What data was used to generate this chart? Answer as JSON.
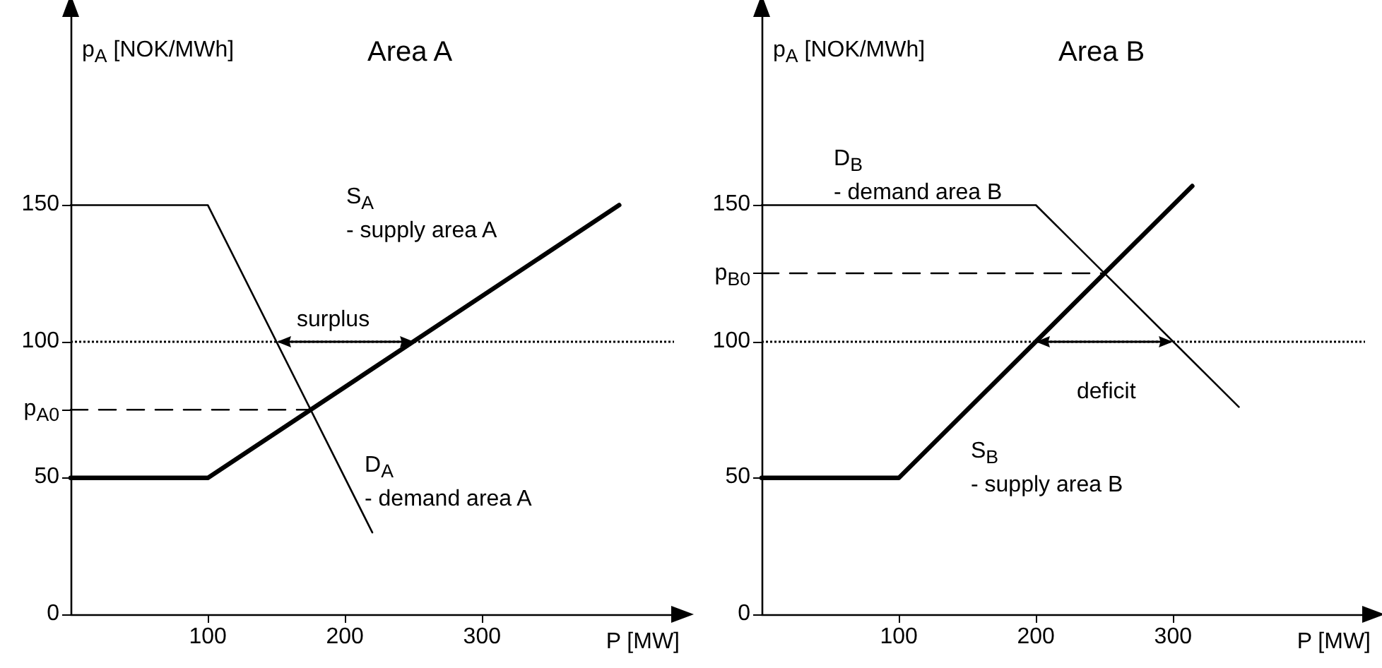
{
  "chart_data": [
    {
      "type": "line",
      "title": "Area A",
      "xlabel": "P [MW]",
      "ylabel": "p$_{A}$ [NOK/MWh]",
      "xlim": [
        0,
        440
      ],
      "ylim": [
        0,
        220
      ],
      "xticks": [
        100,
        200,
        300
      ],
      "yticks": [
        0,
        50,
        {
          "value": 75,
          "label": "p$_{A0}$"
        },
        100,
        150
      ],
      "marker": "none",
      "series": [
        {
          "name": "S$_{A}$\n- supply area A",
          "color": "#000000",
          "x": [
            0,
            100,
            400
          ],
          "values": [
            50,
            50,
            150
          ]
        },
        {
          "name": "D$_{A}$\n- demand area A",
          "color": "#000000",
          "x": [
            0,
            100,
            220
          ],
          "values": [
            150,
            150,
            30
          ]
        },
        {
          "color": "#000000",
          "x": [
            0,
            175
          ],
          "values": [
            75,
            75
          ],
          "line_style": "dashed"
        }
      ],
      "ref_lines": [
        {
          "axis": "y",
          "value": 100,
          "line_style": "dotted",
          "color": "#000000"
        }
      ],
      "annotations": [
        "surplus"
      ]
    },
    {
      "type": "line",
      "title": "Area B",
      "xlabel": "P [MW]",
      "ylabel": "p$_{A}$ [NOK/MWh]",
      "xlim": [
        0,
        440
      ],
      "ylim": [
        0,
        220
      ],
      "xticks": [
        100,
        200,
        300
      ],
      "yticks": [
        0,
        50,
        100,
        {
          "value": 125,
          "label": "p$_{B0}$"
        },
        150
      ],
      "marker": "none",
      "series": [
        {
          "name": "S$_{B}$\n- supply area B",
          "color": "#000000",
          "x": [
            0,
            100,
            314
          ],
          "values": [
            50,
            50,
            157
          ]
        },
        {
          "name": "D$_{B}$\n- demand area B",
          "color": "#000000",
          "x": [
            0,
            200,
            348
          ],
          "values": [
            150,
            150,
            76
          ]
        },
        {
          "color": "#000000",
          "x": [
            0,
            250
          ],
          "values": [
            125,
            125
          ],
          "line_style": "dashed"
        }
      ],
      "ref_lines": [
        {
          "axis": "y",
          "value": 100,
          "line_style": "dotted",
          "color": "#000000"
        }
      ],
      "annotations": [
        "deficit"
      ]
    }
  ]
}
